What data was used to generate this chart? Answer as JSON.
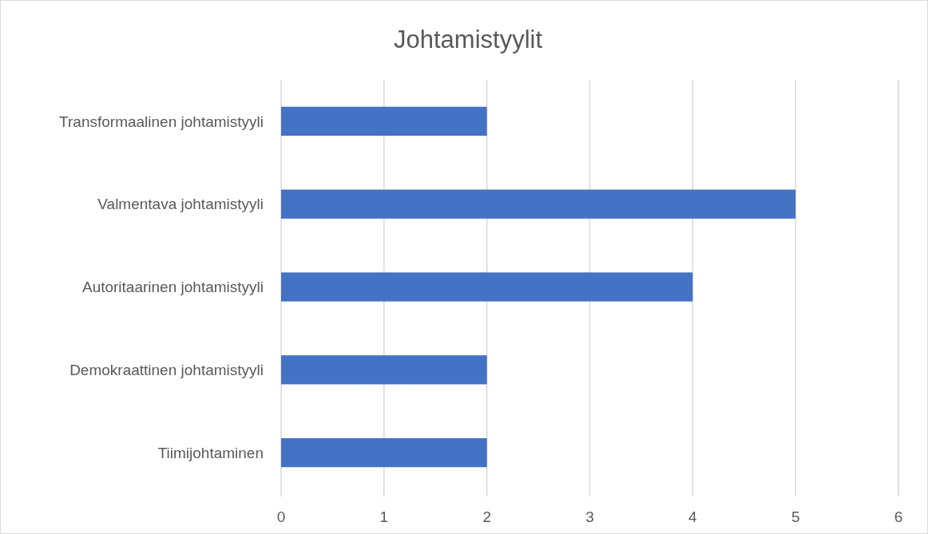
{
  "chart_data": {
    "type": "bar",
    "orientation": "horizontal",
    "title": "Johtamistyylit",
    "categories": [
      "Transformaalinen johtamistyyli",
      "Valmentava johtamistyyli",
      "Autoritaarinen johtamistyyli",
      "Demokraattinen johtamistyyli",
      "Tiimijohtaminen"
    ],
    "values": [
      2,
      5,
      4,
      2,
      2
    ],
    "color": "#4472c4",
    "xlim": [
      0,
      6
    ],
    "xticks": [
      0,
      1,
      2,
      3,
      4,
      5,
      6
    ],
    "grid": "x"
  }
}
